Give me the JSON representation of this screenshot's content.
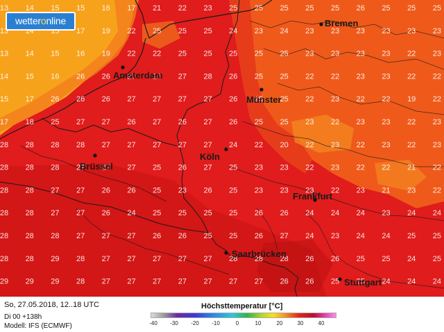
{
  "logo": {
    "text_main": "wetter",
    "text_accent": "o",
    "text_end": "nline"
  },
  "cities": [
    {
      "name": "Bremen"
    },
    {
      "name": "Amsterdam"
    },
    {
      "name": "Münster"
    },
    {
      "name": "Köln"
    },
    {
      "name": "Brüssel"
    },
    {
      "name": "Frankfurt"
    },
    {
      "name": "Saarbrücken"
    },
    {
      "name": "Stuttgart"
    }
  ],
  "footer": {
    "date": "So, 27.05.2018, 12..18 UTC",
    "run": "Di 00 +138h",
    "model": "Modell: IFS (ECMWF)",
    "legend_title": "Höchsttemperatur [°C]",
    "legend_ticks": [
      "-40",
      "-30",
      "-20",
      "-10",
      "0",
      "10",
      "20",
      "30",
      "40"
    ]
  },
  "map_data": {
    "type": "gridded-temperature-map",
    "unit": "°C",
    "rows": [
      [
        13,
        14,
        15,
        15,
        16,
        17,
        21,
        22,
        23,
        25,
        25,
        25,
        25,
        25,
        26,
        25,
        25,
        25
      ],
      [
        13,
        14,
        15,
        17,
        19,
        22,
        25,
        25,
        25,
        24,
        23,
        24,
        23,
        23,
        23,
        23,
        23,
        23
      ],
      [
        13,
        14,
        15,
        16,
        19,
        22,
        22,
        25,
        25,
        25,
        25,
        25,
        23,
        23,
        23,
        23,
        22,
        23
      ],
      [
        14,
        15,
        16,
        26,
        26,
        27,
        27,
        27,
        28,
        26,
        25,
        25,
        22,
        22,
        23,
        23,
        22,
        22
      ],
      [
        15,
        17,
        26,
        26,
        26,
        27,
        27,
        27,
        27,
        26,
        25,
        25,
        22,
        23,
        22,
        22,
        19,
        22
      ],
      [
        17,
        18,
        25,
        27,
        27,
        26,
        27,
        26,
        27,
        26,
        25,
        25,
        23,
        22,
        23,
        23,
        22,
        23
      ],
      [
        28,
        28,
        28,
        28,
        27,
        27,
        27,
        27,
        27,
        24,
        22,
        20,
        22,
        23,
        22,
        23,
        22,
        23
      ],
      [
        28,
        28,
        28,
        27,
        27,
        27,
        25,
        26,
        27,
        25,
        23,
        23,
        22,
        23,
        22,
        22,
        21,
        22
      ],
      [
        28,
        28,
        27,
        27,
        26,
        26,
        25,
        23,
        26,
        25,
        23,
        23,
        23,
        22,
        23,
        21,
        23,
        22
      ],
      [
        28,
        28,
        27,
        27,
        26,
        24,
        25,
        25,
        25,
        25,
        26,
        26,
        24,
        24,
        24,
        23,
        24,
        24
      ],
      [
        28,
        28,
        28,
        27,
        27,
        27,
        26,
        26,
        25,
        25,
        26,
        27,
        24,
        23,
        24,
        24,
        25,
        25
      ],
      [
        28,
        28,
        29,
        28,
        27,
        27,
        27,
        27,
        27,
        28,
        28,
        28,
        26,
        26,
        25,
        25,
        24,
        25
      ],
      [
        29,
        29,
        29,
        28,
        27,
        27,
        27,
        27,
        27,
        27,
        27,
        26,
        26,
        25,
        25,
        24,
        24,
        24
      ]
    ],
    "palette_tops": [
      "#f5a623",
      "#ee5a1c",
      "#e12020",
      "#d81414"
    ]
  }
}
